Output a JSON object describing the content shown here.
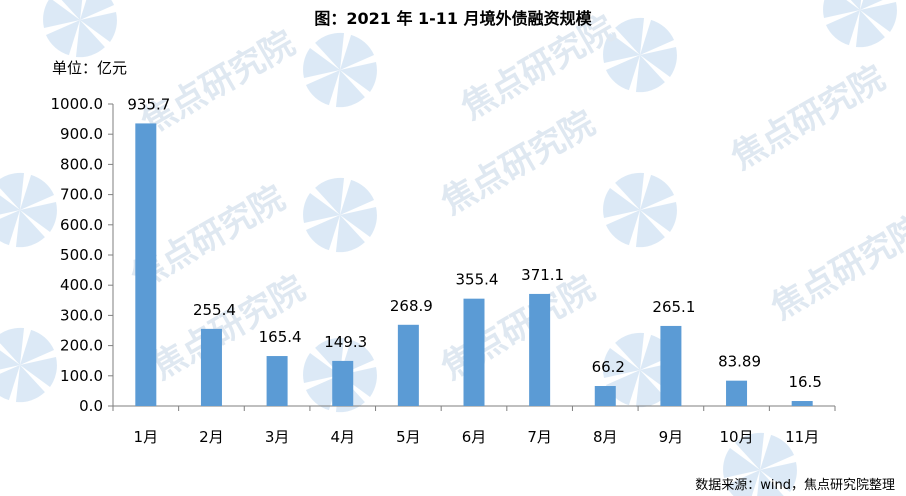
{
  "title": "图：2021 年 1-11 月境外债融资规模",
  "unit_label": "单位：亿元",
  "source": "数据来源：wind，焦点研究院整理",
  "watermark": "焦点研究院",
  "colors": {
    "bar": "#5b9bd5",
    "axis": "#7f7f7f",
    "watermark": "#dfe8f1"
  },
  "chart_data": {
    "type": "bar",
    "title": "图：2021 年 1-11 月境外债融资规模",
    "ylabel": "单位：亿元",
    "xlabel": "",
    "categories": [
      "1月",
      "2月",
      "3月",
      "4月",
      "5月",
      "6月",
      "7月",
      "8月",
      "9月",
      "10月",
      "11月"
    ],
    "values": [
      935.7,
      255.4,
      165.4,
      149.3,
      268.9,
      355.4,
      371.1,
      66.2,
      265.1,
      83.89,
      16.5
    ],
    "value_labels": [
      "935.7",
      "255.4",
      "165.4",
      "149.3",
      "268.9",
      "355.4",
      "371.1",
      "66.2",
      "265.1",
      "83.89",
      "16.5"
    ],
    "ylim": [
      0,
      1000
    ],
    "yticks": [
      "0.0",
      "100.0",
      "200.0",
      "300.0",
      "400.0",
      "500.0",
      "600.0",
      "700.0",
      "800.0",
      "900.0",
      "1000.0"
    ],
    "grid": false,
    "legend": "none"
  }
}
